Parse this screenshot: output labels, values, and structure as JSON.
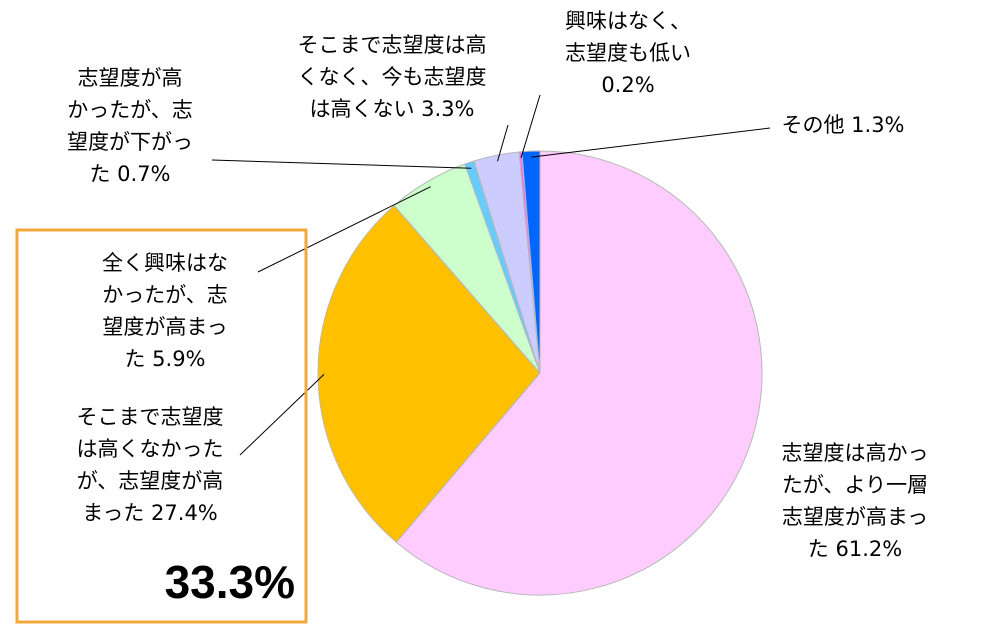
{
  "chart_data": {
    "type": "pie",
    "start_angle_deg": 0,
    "direction": "clockwise",
    "slices": [
      {
        "label_lines": [
          "志望度は高かっ",
          "たが、より一層",
          "志望度が高まっ",
          "た 61.2%"
        ],
        "value": 61.2,
        "color": "#FFCCFF"
      },
      {
        "label_lines": [
          "そこまで志望度",
          "は高くなかった",
          "が、志望度が高",
          "まった 27.4%"
        ],
        "value": 27.4,
        "color": "#FFC000"
      },
      {
        "label_lines": [
          "全く興味はな",
          "かったが、志",
          "望度が高まっ",
          "た 5.9%"
        ],
        "value": 5.9,
        "color": "#CCFFCC"
      },
      {
        "label_lines": [
          "志望度が高",
          "かったが、志",
          "望度が下がっ",
          "た 0.7%"
        ],
        "value": 0.7,
        "color": "#66CCFF"
      },
      {
        "label_lines": [
          "そこまで志望度は高",
          "くなく、今も志望度",
          "は高くない 3.3%"
        ],
        "value": 3.3,
        "color": "#CCCCFF"
      },
      {
        "label_lines": [
          "興味はなく、",
          "志望度も低い",
          "0.2%"
        ],
        "value": 0.2,
        "color": "#FF66FF"
      },
      {
        "label_lines": [
          "その他 1.3%"
        ],
        "value": 1.3,
        "color": "#0066FF"
      }
    ]
  },
  "highlight": {
    "total_text": "33.3%",
    "box_color": "#F4A83A"
  }
}
